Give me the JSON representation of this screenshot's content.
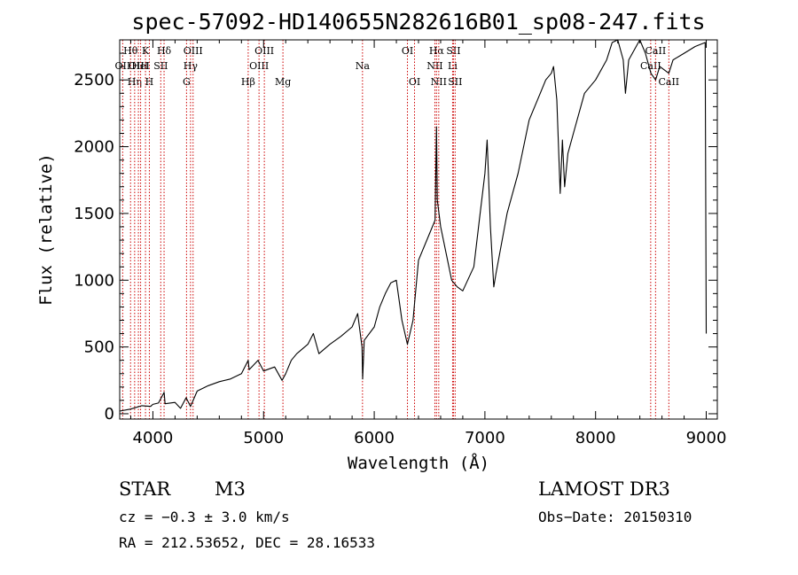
{
  "chart_data": {
    "type": "line",
    "title": "spec-57092-HD140655N282616B01_sp08-247.fits",
    "xlabel": "Wavelength (Å)",
    "ylabel": "Flux (relative)",
    "xlim": [
      3700,
      9100
    ],
    "ylim": [
      -40,
      2800
    ],
    "x_ticks": [
      {
        "value": 4000,
        "label": "4000"
      },
      {
        "value": 5000,
        "label": "5000"
      },
      {
        "value": 6000,
        "label": "6000"
      },
      {
        "value": 7000,
        "label": "7000"
      },
      {
        "value": 8000,
        "label": "8000"
      },
      {
        "value": 9000,
        "label": "9000"
      }
    ],
    "y_ticks": [
      {
        "value": 0,
        "label": "0"
      },
      {
        "value": 500,
        "label": "500"
      },
      {
        "value": 1000,
        "label": "1000"
      },
      {
        "value": 1500,
        "label": "1500"
      },
      {
        "value": 2000,
        "label": "2000"
      },
      {
        "value": 2500,
        "label": "2500"
      }
    ],
    "series": [
      {
        "name": "spectrum",
        "color": "#000000",
        "points": [
          [
            3700,
            20
          ],
          [
            3800,
            35
          ],
          [
            3900,
            60
          ],
          [
            3980,
            55
          ],
          [
            4000,
            70
          ],
          [
            4050,
            80
          ],
          [
            4101,
            160
          ],
          [
            4110,
            75
          ],
          [
            4200,
            85
          ],
          [
            4250,
            40
          ],
          [
            4300,
            120
          ],
          [
            4340,
            55
          ],
          [
            4400,
            170
          ],
          [
            4500,
            210
          ],
          [
            4600,
            240
          ],
          [
            4700,
            260
          ],
          [
            4800,
            300
          ],
          [
            4861,
            400
          ],
          [
            4870,
            330
          ],
          [
            4950,
            400
          ],
          [
            5000,
            320
          ],
          [
            5100,
            350
          ],
          [
            5167,
            250
          ],
          [
            5200,
            300
          ],
          [
            5250,
            400
          ],
          [
            5300,
            450
          ],
          [
            5400,
            520
          ],
          [
            5450,
            600
          ],
          [
            5500,
            450
          ],
          [
            5600,
            520
          ],
          [
            5700,
            580
          ],
          [
            5800,
            650
          ],
          [
            5850,
            750
          ],
          [
            5890,
            500
          ],
          [
            5895,
            260
          ],
          [
            5910,
            550
          ],
          [
            6000,
            650
          ],
          [
            6050,
            800
          ],
          [
            6100,
            900
          ],
          [
            6150,
            980
          ],
          [
            6200,
            1000
          ],
          [
            6250,
            700
          ],
          [
            6300,
            520
          ],
          [
            6350,
            700
          ],
          [
            6400,
            1150
          ],
          [
            6500,
            1350
          ],
          [
            6550,
            1450
          ],
          [
            6563,
            2150
          ],
          [
            6570,
            1600
          ],
          [
            6600,
            1400
          ],
          [
            6650,
            1200
          ],
          [
            6700,
            1000
          ],
          [
            6750,
            950
          ],
          [
            6800,
            920
          ],
          [
            6900,
            1100
          ],
          [
            6950,
            1450
          ],
          [
            7000,
            1800
          ],
          [
            7020,
            2050
          ],
          [
            7050,
            1400
          ],
          [
            7080,
            950
          ],
          [
            7100,
            1050
          ],
          [
            7200,
            1500
          ],
          [
            7300,
            1800
          ],
          [
            7400,
            2200
          ],
          [
            7500,
            2400
          ],
          [
            7550,
            2500
          ],
          [
            7600,
            2550
          ],
          [
            7620,
            2600
          ],
          [
            7650,
            2350
          ],
          [
            7680,
            1650
          ],
          [
            7700,
            2050
          ],
          [
            7720,
            1700
          ],
          [
            7750,
            1950
          ],
          [
            7800,
            2100
          ],
          [
            7900,
            2400
          ],
          [
            8000,
            2500
          ],
          [
            8100,
            2650
          ],
          [
            8150,
            2780
          ],
          [
            8200,
            2800
          ],
          [
            8250,
            2650
          ],
          [
            8270,
            2400
          ],
          [
            8300,
            2650
          ],
          [
            8400,
            2800
          ],
          [
            8450,
            2700
          ],
          [
            8500,
            2550
          ],
          [
            8542,
            2500
          ],
          [
            8580,
            2600
          ],
          [
            8662,
            2550
          ],
          [
            8700,
            2650
          ],
          [
            8800,
            2700
          ],
          [
            8900,
            2750
          ],
          [
            8990,
            2780
          ],
          [
            9000,
            600
          ]
        ]
      }
    ],
    "line_markers": [
      {
        "wavelength": 3727,
        "label": "OII",
        "row": 2
      },
      {
        "wavelength": 3798,
        "label": "Hθ",
        "row": 1
      },
      {
        "wavelength": 3835,
        "label": "Hη",
        "row": 3
      },
      {
        "wavelength": 3869,
        "label": "OIII",
        "row": 2
      },
      {
        "wavelength": 3889,
        "label": "HeI",
        "row": 2
      },
      {
        "wavelength": 3933,
        "label": "K",
        "row": 1
      },
      {
        "wavelength": 3968,
        "label": "H",
        "row": 3
      },
      {
        "wavelength": 4071,
        "label": "SII",
        "row": 2
      },
      {
        "wavelength": 4101,
        "label": "Hδ",
        "row": 1
      },
      {
        "wavelength": 4304,
        "label": "G",
        "row": 3
      },
      {
        "wavelength": 4340,
        "label": "Hγ",
        "row": 2
      },
      {
        "wavelength": 4363,
        "label": "OIII",
        "row": 1
      },
      {
        "wavelength": 4861,
        "label": "Hβ",
        "row": 3
      },
      {
        "wavelength": 4959,
        "label": "OIII",
        "row": 2
      },
      {
        "wavelength": 5007,
        "label": "OIII",
        "row": 1
      },
      {
        "wavelength": 5175,
        "label": "Mg",
        "row": 3
      },
      {
        "wavelength": 5894,
        "label": "Na",
        "row": 2
      },
      {
        "wavelength": 6300,
        "label": "OI",
        "row": 1
      },
      {
        "wavelength": 6364,
        "label": "OI",
        "row": 3
      },
      {
        "wavelength": 6548,
        "label": "NII",
        "row": 2
      },
      {
        "wavelength": 6563,
        "label": "Hα",
        "row": 1
      },
      {
        "wavelength": 6583,
        "label": "NII",
        "row": 3
      },
      {
        "wavelength": 6708,
        "label": "Li",
        "row": 2
      },
      {
        "wavelength": 6716,
        "label": "SII",
        "row": 1
      },
      {
        "wavelength": 6731,
        "label": "SII",
        "row": 3
      },
      {
        "wavelength": 8498,
        "label": "CaII",
        "row": 2
      },
      {
        "wavelength": 8542,
        "label": "CaII",
        "row": 1
      },
      {
        "wavelength": 8662,
        "label": "CaII",
        "row": 3
      }
    ],
    "marker_color": "#cc0000"
  },
  "info": {
    "object_class": "STAR",
    "subclass": "M3",
    "survey": "LAMOST DR3",
    "redshift_text": "cz = −0.3 ± 3.0 km/s",
    "obs_date": "Obs−Date: 20150310",
    "coords": "RA = 212.53652, DEC =  28.16533"
  }
}
